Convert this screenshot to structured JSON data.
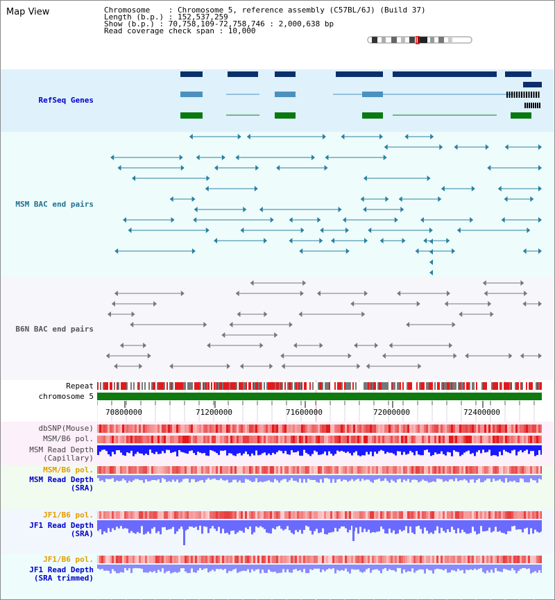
{
  "title": "Map View",
  "info": {
    "chromosome": "Chromosome    : Chromosome 5, reference assembly (C57BL/6J) (Build 37)",
    "length": "Length (b.p.) : 152,537,259",
    "show": "Show (b.p.) : 70,758,109-72,758,746 : 2,000,638 bp",
    "coverage": "Read coverage check span : 10,000"
  },
  "tracks": {
    "refseq": "RefSeq Genes",
    "msm_bac": "MSM BAC end pairs",
    "b6n_bac": "B6N BAC end pairs",
    "repeat": "Repeat",
    "chromosome": "chromosome 5",
    "dbsnp": "dbSNP(Mouse)",
    "msm_b6_pol": "MSM/B6 pol.",
    "msm_depth_cap_1": "MSM Read Depth",
    "msm_depth_cap_2": "(Capillary)",
    "msm_b6_pol2": "MSM/B6 pol.",
    "msm_depth_sra_1": "MSM Read Depth",
    "msm_depth_sra_2": "(SRA)",
    "jf1_b6_pol": "JF1/B6 pol.",
    "jf1_depth_sra_1": "JF1 Read Depth",
    "jf1_depth_sra_2": "(SRA)",
    "jf1_b6_pol2": "JF1/B6 pol.",
    "jf1_depth_trim_1": "JF1 Read Depth",
    "jf1_depth_trim_2": "(SRA trimmed)"
  },
  "axis": {
    "ticks": [
      "70800000",
      "71200000",
      "71600000",
      "72000000",
      "72400000"
    ]
  },
  "colors": {
    "refseq_bg": "#dff1fb",
    "bac_bg": "#eefcfc",
    "b6n_bg": "#f7f7fb",
    "msm_label": "#1f6f92",
    "refseq_label": "#0000cc",
    "pol_label": "#e39b00",
    "depth_label": "#0000cc",
    "gene_dark": "#0b2f6b",
    "gene_mid": "#4b91bf",
    "gene_green": "#0a7a10",
    "chrom_green": "#0f7a0f"
  }
}
